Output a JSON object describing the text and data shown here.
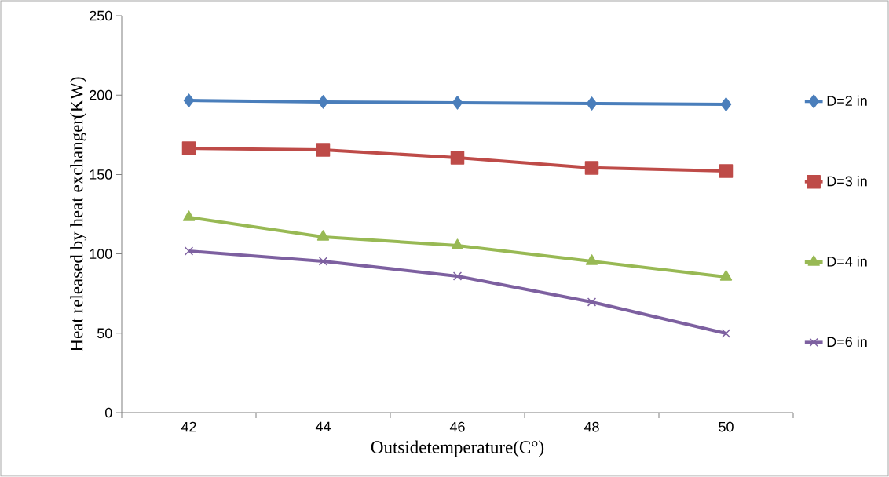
{
  "chart_data": {
    "type": "line",
    "xlabel": "Outsidetemperature(C°)",
    "ylabel": "Heat released by heat exchanger(KW)",
    "categories": [
      "42",
      "44",
      "46",
      "48",
      "50"
    ],
    "ylim": [
      0,
      250
    ],
    "yticks": [
      0,
      50,
      100,
      150,
      200,
      250
    ],
    "grid": false,
    "legend": "right",
    "series": [
      {
        "name": "D=2 in",
        "color": "#4a7ebb",
        "marker": "diamond",
        "values": [
          196.6,
          195.7,
          195.2,
          194.7,
          194.2
        ]
      },
      {
        "name": "D=3 in",
        "color": "#be4b48",
        "marker": "square",
        "values": [
          166.5,
          165.5,
          160.6,
          154.2,
          152.2
        ]
      },
      {
        "name": "D=4 in",
        "color": "#98b954",
        "marker": "triangle",
        "values": [
          123,
          110.7,
          105.2,
          95.4,
          85.5
        ]
      },
      {
        "name": "D=6 in",
        "color": "#7d60a0",
        "marker": "cross",
        "values": [
          101.8,
          95.4,
          86,
          69.7,
          49.9
        ]
      }
    ]
  }
}
